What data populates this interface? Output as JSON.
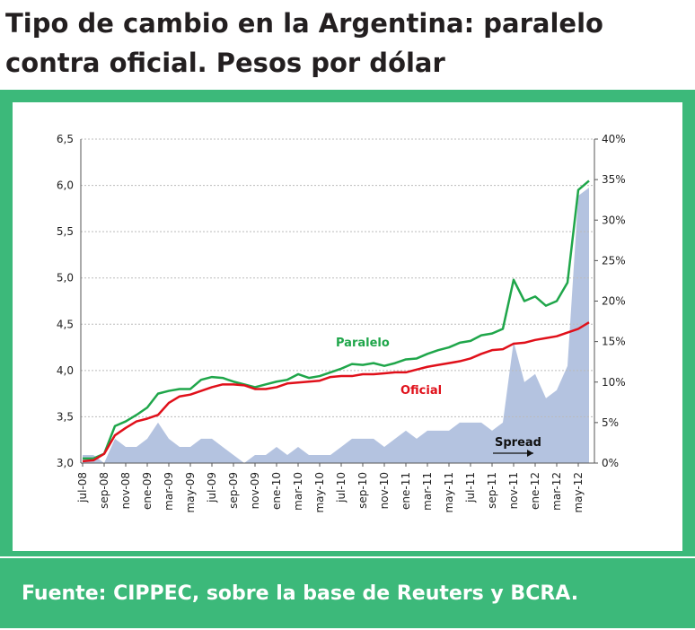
{
  "chart_data": {
    "type": "line",
    "title": "Tipo de cambio en la Argentina: paralelo contra oficial. Pesos por dólar",
    "source": "Fuente: CIPPEC, sobre la base de Reuters y BCRA.",
    "categories": [
      "jul-08",
      null,
      "sep-08",
      null,
      "nov-08",
      null,
      "ene-09",
      null,
      "mar-09",
      null,
      "may-09",
      null,
      "jul-09",
      null,
      "sep-09",
      null,
      "nov-09",
      null,
      "ene-10",
      null,
      "mar-10",
      null,
      "may-10",
      null,
      "jul-10",
      null,
      "sep-10",
      null,
      "nov-10",
      null,
      "ene-11",
      null,
      "mar-11",
      null,
      "may-11",
      null,
      "jul-11",
      null,
      "sep-11",
      null,
      "nov-11",
      null,
      "ene-12",
      null,
      "mar-12",
      null,
      "may-12",
      null
    ],
    "series": [
      {
        "name": "Paralelo",
        "color": "#1fa64a",
        "values": [
          3.05,
          3.05,
          3.1,
          3.4,
          3.45,
          3.52,
          3.6,
          3.75,
          3.78,
          3.8,
          3.8,
          3.9,
          3.93,
          3.92,
          3.88,
          3.85,
          3.82,
          3.85,
          3.88,
          3.9,
          3.96,
          3.92,
          3.94,
          3.98,
          4.02,
          4.07,
          4.06,
          4.08,
          4.05,
          4.08,
          4.12,
          4.13,
          4.18,
          4.22,
          4.25,
          4.3,
          4.32,
          4.38,
          4.4,
          4.45,
          4.98,
          4.75,
          4.8,
          4.7,
          4.75,
          4.95,
          5.95,
          6.05
        ]
      },
      {
        "name": "Oficial",
        "color": "#e0101a",
        "values": [
          3.02,
          3.03,
          3.1,
          3.3,
          3.38,
          3.45,
          3.48,
          3.52,
          3.65,
          3.72,
          3.74,
          3.78,
          3.82,
          3.85,
          3.85,
          3.84,
          3.8,
          3.8,
          3.82,
          3.86,
          3.87,
          3.88,
          3.89,
          3.93,
          3.94,
          3.94,
          3.96,
          3.96,
          3.97,
          3.98,
          3.98,
          4.01,
          4.04,
          4.06,
          4.08,
          4.1,
          4.13,
          4.18,
          4.22,
          4.23,
          4.29,
          4.3,
          4.33,
          4.35,
          4.37,
          4.41,
          4.45,
          4.52
        ]
      },
      {
        "name": "Spread",
        "color": "#b4c3e0",
        "axis": "y2",
        "values": [
          1,
          1,
          0,
          3,
          2,
          2,
          3,
          5,
          3,
          2,
          2,
          3,
          3,
          2,
          1,
          0,
          1,
          1,
          2,
          1,
          2,
          1,
          1,
          1,
          2,
          3,
          3,
          3,
          2,
          3,
          4,
          3,
          4,
          4,
          4,
          5,
          5,
          5,
          4,
          5,
          15,
          10,
          11,
          8,
          9,
          12,
          33,
          34
        ]
      }
    ],
    "ylim": [
      3.0,
      6.5
    ],
    "yticks": [
      {
        "value": 3.0,
        "label": "3,0"
      },
      {
        "value": 3.5,
        "label": "3,5"
      },
      {
        "value": 4.0,
        "label": "4,0"
      },
      {
        "value": 4.5,
        "label": "4,5"
      },
      {
        "value": 5.0,
        "label": "5,0"
      },
      {
        "value": 5.5,
        "label": "5,5"
      },
      {
        "value": 6.0,
        "label": "6,0"
      },
      {
        "value": 6.5,
        "label": "6,5"
      }
    ],
    "y2lim": [
      0,
      40
    ],
    "y2ticks": [
      {
        "value": 0,
        "label": "0%"
      },
      {
        "value": 5,
        "label": "5%"
      },
      {
        "value": 10,
        "label": "10%"
      },
      {
        "value": 15,
        "label": "15%"
      },
      {
        "value": 20,
        "label": "20%"
      },
      {
        "value": 25,
        "label": "25%"
      },
      {
        "value": 30,
        "label": "30%"
      },
      {
        "value": 35,
        "label": "35%"
      },
      {
        "value": 40,
        "label": "40%"
      }
    ],
    "grid": true
  }
}
